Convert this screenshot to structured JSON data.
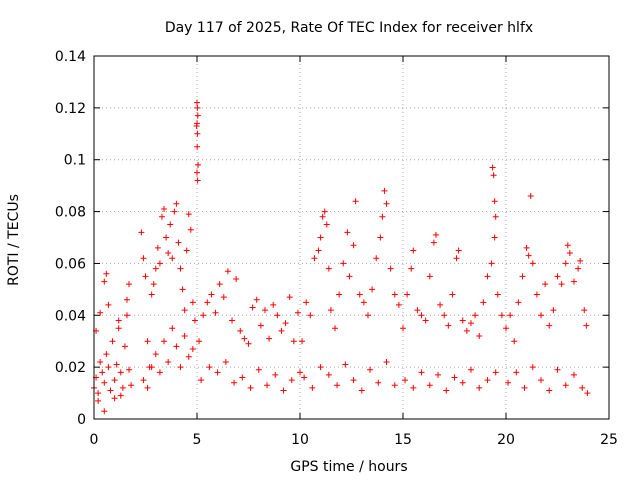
{
  "chart_data": {
    "type": "scatter",
    "title": "Day 117 of 2025, Rate Of TEC Index for receiver hlfx",
    "xlabel": "GPS time / hours",
    "ylabel": "ROTI / TECUs",
    "xlim": [
      0,
      25
    ],
    "ylim": [
      0,
      0.14
    ],
    "xticks": [
      0,
      5,
      10,
      15,
      20,
      25
    ],
    "xtick_labels": [
      "0",
      "5",
      "10",
      "15",
      "20",
      "25"
    ],
    "yticks": [
      0,
      0.02,
      0.04,
      0.06,
      0.08,
      0.1,
      0.12,
      0.14
    ],
    "ytick_labels": [
      "0",
      "0.02",
      "0.04",
      "0.06",
      "0.08",
      "0.1",
      "0.12",
      "0.14"
    ],
    "grid": true,
    "marker": "+",
    "color": "#ff0000",
    "series": [
      {
        "name": "ROTI",
        "points": [
          [
            0.0,
            0.012
          ],
          [
            0.1,
            0.016
          ],
          [
            0.2,
            0.01
          ],
          [
            0.3,
            0.022
          ],
          [
            0.4,
            0.018
          ],
          [
            0.5,
            0.014
          ],
          [
            0.6,
            0.025
          ],
          [
            0.7,
            0.02
          ],
          [
            0.8,
            0.011
          ],
          [
            0.9,
            0.03
          ],
          [
            1.0,
            0.015
          ],
          [
            1.1,
            0.021
          ],
          [
            1.2,
            0.035
          ],
          [
            1.3,
            0.018
          ],
          [
            1.4,
            0.012
          ],
          [
            1.5,
            0.028
          ],
          [
            1.6,
            0.04
          ],
          [
            1.7,
            0.019
          ],
          [
            1.8,
            0.013
          ],
          [
            0.1,
            0.034
          ],
          [
            0.3,
            0.041
          ],
          [
            0.5,
            0.053
          ],
          [
            0.6,
            0.056
          ],
          [
            0.5,
            0.003
          ],
          [
            0.7,
            0.044
          ],
          [
            1.2,
            0.038
          ],
          [
            1.6,
            0.046
          ],
          [
            1.7,
            0.052
          ],
          [
            1.3,
            0.009
          ],
          [
            0.2,
            0.007
          ],
          [
            1.0,
            0.008
          ],
          [
            2.3,
            0.072
          ],
          [
            2.4,
            0.062
          ],
          [
            2.5,
            0.055
          ],
          [
            2.6,
            0.03
          ],
          [
            2.7,
            0.02
          ],
          [
            2.8,
            0.048
          ],
          [
            2.9,
            0.052
          ],
          [
            3.0,
            0.058
          ],
          [
            3.1,
            0.066
          ],
          [
            3.2,
            0.06
          ],
          [
            3.3,
            0.078
          ],
          [
            3.4,
            0.081
          ],
          [
            3.5,
            0.07
          ],
          [
            3.6,
            0.064
          ],
          [
            3.7,
            0.075
          ],
          [
            3.8,
            0.062
          ],
          [
            3.9,
            0.08
          ],
          [
            4.0,
            0.083
          ],
          [
            4.1,
            0.068
          ],
          [
            4.2,
            0.058
          ],
          [
            4.3,
            0.05
          ],
          [
            4.4,
            0.042
          ],
          [
            4.5,
            0.065
          ],
          [
            4.6,
            0.079
          ],
          [
            4.7,
            0.073
          ],
          [
            4.8,
            0.045
          ],
          [
            4.9,
            0.038
          ],
          [
            2.4,
            0.015
          ],
          [
            2.6,
            0.012
          ],
          [
            2.8,
            0.02
          ],
          [
            3.0,
            0.025
          ],
          [
            3.2,
            0.018
          ],
          [
            3.4,
            0.03
          ],
          [
            3.6,
            0.022
          ],
          [
            3.8,
            0.035
          ],
          [
            4.0,
            0.028
          ],
          [
            4.2,
            0.02
          ],
          [
            4.4,
            0.032
          ],
          [
            4.6,
            0.024
          ],
          [
            4.8,
            0.027
          ],
          [
            5.0,
            0.122
          ],
          [
            5.02,
            0.12
          ],
          [
            5.04,
            0.117
          ],
          [
            5.0,
            0.114
          ],
          [
            5.02,
            0.11
          ],
          [
            5.05,
            0.098
          ],
          [
            5.0,
            0.095
          ],
          [
            5.03,
            0.092
          ],
          [
            4.98,
            0.113
          ],
          [
            5.01,
            0.105
          ],
          [
            5.1,
            0.03
          ],
          [
            5.3,
            0.04
          ],
          [
            5.5,
            0.045
          ],
          [
            5.7,
            0.048
          ],
          [
            5.9,
            0.041
          ],
          [
            6.1,
            0.052
          ],
          [
            6.3,
            0.047
          ],
          [
            6.5,
            0.057
          ],
          [
            6.7,
            0.038
          ],
          [
            6.9,
            0.054
          ],
          [
            7.1,
            0.034
          ],
          [
            7.3,
            0.031
          ],
          [
            7.5,
            0.029
          ],
          [
            7.7,
            0.043
          ],
          [
            7.9,
            0.046
          ],
          [
            8.1,
            0.036
          ],
          [
            8.3,
            0.042
          ],
          [
            8.5,
            0.031
          ],
          [
            8.7,
            0.044
          ],
          [
            8.9,
            0.04
          ],
          [
            9.1,
            0.034
          ],
          [
            9.3,
            0.037
          ],
          [
            9.5,
            0.047
          ],
          [
            9.7,
            0.03
          ],
          [
            9.9,
            0.041
          ],
          [
            5.2,
            0.015
          ],
          [
            5.6,
            0.02
          ],
          [
            6.0,
            0.018
          ],
          [
            6.4,
            0.022
          ],
          [
            6.8,
            0.014
          ],
          [
            7.2,
            0.016
          ],
          [
            7.6,
            0.012
          ],
          [
            8.0,
            0.019
          ],
          [
            8.4,
            0.013
          ],
          [
            8.8,
            0.017
          ],
          [
            9.2,
            0.011
          ],
          [
            9.6,
            0.015
          ],
          [
            10.0,
            0.018
          ],
          [
            10.1,
            0.03
          ],
          [
            10.3,
            0.045
          ],
          [
            10.5,
            0.04
          ],
          [
            10.7,
            0.062
          ],
          [
            10.9,
            0.065
          ],
          [
            11.0,
            0.07
          ],
          [
            11.1,
            0.078
          ],
          [
            11.2,
            0.08
          ],
          [
            11.3,
            0.075
          ],
          [
            11.4,
            0.058
          ],
          [
            11.5,
            0.042
          ],
          [
            11.7,
            0.035
          ],
          [
            11.9,
            0.048
          ],
          [
            12.1,
            0.06
          ],
          [
            12.3,
            0.072
          ],
          [
            12.4,
            0.055
          ],
          [
            12.6,
            0.067
          ],
          [
            12.7,
            0.084
          ],
          [
            12.9,
            0.048
          ],
          [
            13.1,
            0.045
          ],
          [
            13.3,
            0.04
          ],
          [
            13.5,
            0.05
          ],
          [
            13.7,
            0.062
          ],
          [
            13.9,
            0.07
          ],
          [
            14.0,
            0.078
          ],
          [
            14.1,
            0.088
          ],
          [
            14.2,
            0.083
          ],
          [
            14.4,
            0.058
          ],
          [
            14.6,
            0.048
          ],
          [
            14.8,
            0.044
          ],
          [
            10.2,
            0.016
          ],
          [
            10.6,
            0.012
          ],
          [
            11.0,
            0.02
          ],
          [
            11.4,
            0.017
          ],
          [
            11.8,
            0.013
          ],
          [
            12.2,
            0.021
          ],
          [
            12.6,
            0.015
          ],
          [
            13.0,
            0.011
          ],
          [
            13.4,
            0.019
          ],
          [
            13.8,
            0.014
          ],
          [
            14.2,
            0.022
          ],
          [
            14.6,
            0.013
          ],
          [
            15.0,
            0.035
          ],
          [
            15.2,
            0.048
          ],
          [
            15.4,
            0.058
          ],
          [
            15.5,
            0.065
          ],
          [
            15.7,
            0.042
          ],
          [
            15.9,
            0.04
          ],
          [
            16.1,
            0.038
          ],
          [
            16.3,
            0.055
          ],
          [
            16.5,
            0.068
          ],
          [
            16.6,
            0.071
          ],
          [
            16.8,
            0.044
          ],
          [
            17.0,
            0.04
          ],
          [
            17.2,
            0.036
          ],
          [
            17.4,
            0.048
          ],
          [
            17.6,
            0.062
          ],
          [
            17.7,
            0.065
          ],
          [
            17.9,
            0.038
          ],
          [
            18.1,
            0.034
          ],
          [
            18.3,
            0.037
          ],
          [
            18.5,
            0.04
          ],
          [
            18.7,
            0.032
          ],
          [
            18.9,
            0.045
          ],
          [
            19.1,
            0.055
          ],
          [
            19.3,
            0.06
          ],
          [
            19.35,
            0.097
          ],
          [
            19.4,
            0.094
          ],
          [
            19.45,
            0.084
          ],
          [
            19.5,
            0.078
          ],
          [
            19.45,
            0.07
          ],
          [
            19.6,
            0.048
          ],
          [
            19.8,
            0.04
          ],
          [
            15.1,
            0.015
          ],
          [
            15.5,
            0.012
          ],
          [
            15.9,
            0.018
          ],
          [
            16.3,
            0.013
          ],
          [
            16.7,
            0.017
          ],
          [
            17.1,
            0.011
          ],
          [
            17.5,
            0.016
          ],
          [
            17.9,
            0.014
          ],
          [
            18.3,
            0.019
          ],
          [
            18.7,
            0.012
          ],
          [
            19.1,
            0.015
          ],
          [
            19.5,
            0.018
          ],
          [
            20.0,
            0.035
          ],
          [
            20.2,
            0.04
          ],
          [
            20.4,
            0.03
          ],
          [
            20.6,
            0.045
          ],
          [
            20.8,
            0.055
          ],
          [
            21.0,
            0.066
          ],
          [
            21.1,
            0.063
          ],
          [
            21.2,
            0.086
          ],
          [
            21.3,
            0.06
          ],
          [
            21.5,
            0.048
          ],
          [
            21.7,
            0.04
          ],
          [
            21.9,
            0.052
          ],
          [
            22.1,
            0.036
          ],
          [
            22.3,
            0.042
          ],
          [
            22.5,
            0.055
          ],
          [
            22.7,
            0.052
          ],
          [
            22.9,
            0.06
          ],
          [
            23.0,
            0.067
          ],
          [
            23.1,
            0.064
          ],
          [
            23.3,
            0.053
          ],
          [
            23.5,
            0.058
          ],
          [
            23.6,
            0.061
          ],
          [
            23.8,
            0.042
          ],
          [
            23.9,
            0.036
          ],
          [
            20.1,
            0.014
          ],
          [
            20.5,
            0.018
          ],
          [
            20.9,
            0.012
          ],
          [
            21.3,
            0.02
          ],
          [
            21.7,
            0.015
          ],
          [
            22.1,
            0.011
          ],
          [
            22.5,
            0.019
          ],
          [
            22.9,
            0.013
          ],
          [
            23.3,
            0.017
          ],
          [
            23.7,
            0.012
          ],
          [
            23.95,
            0.01
          ]
        ]
      }
    ]
  }
}
